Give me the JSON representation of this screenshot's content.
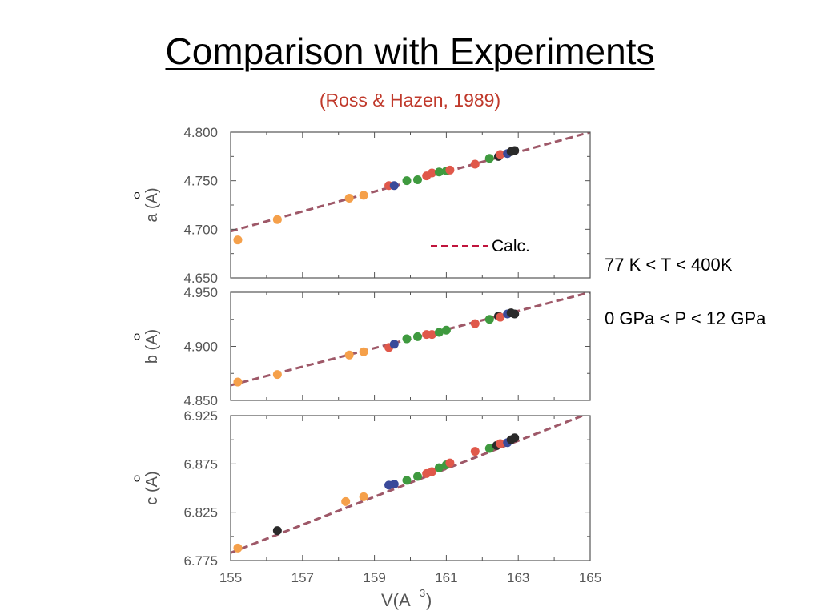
{
  "slide": {
    "title": "Comparison with Experiments",
    "subtitle": "(Ross & Hazen, 1989)",
    "conditions": [
      "77 K < T < 400K",
      "0 GPa < P < 12 GPa"
    ]
  },
  "colors": {
    "subtitle": "#c0392b",
    "calc_line": "#9e5868",
    "legend_line": "#c0143c",
    "orange": "#f5a04a",
    "red": "#e0584a",
    "green": "#3f9a3f",
    "blue": "#3a4a9a",
    "black": "#2a2a2a"
  },
  "legend": {
    "label": "Calc.",
    "style": "dashed"
  },
  "x_axis": {
    "label": "V(A",
    "label_sup": "3",
    "label_close": ")",
    "ticks": [
      "155",
      "157",
      "159",
      "161",
      "163",
      "165"
    ],
    "range": [
      155,
      165
    ]
  },
  "chart_data": [
    {
      "type": "scatter",
      "ylabel": "a (A)",
      "ylabel_accent": "o",
      "ylim": [
        4.65,
        4.8
      ],
      "xlim": [
        155,
        165
      ],
      "yticks": [
        "4.800",
        "4.750",
        "4.700",
        "4.650"
      ],
      "calc_line": {
        "x": [
          155,
          165
        ],
        "y": [
          4.698,
          4.8
        ]
      },
      "points": [
        {
          "x": 155.2,
          "y": 4.689,
          "c": "orange"
        },
        {
          "x": 156.3,
          "y": 4.71,
          "c": "orange"
        },
        {
          "x": 158.3,
          "y": 4.732,
          "c": "orange"
        },
        {
          "x": 158.7,
          "y": 4.735,
          "c": "orange"
        },
        {
          "x": 159.4,
          "y": 4.745,
          "c": "red"
        },
        {
          "x": 159.55,
          "y": 4.745,
          "c": "blue"
        },
        {
          "x": 159.9,
          "y": 4.75,
          "c": "green"
        },
        {
          "x": 160.2,
          "y": 4.751,
          "c": "green"
        },
        {
          "x": 160.45,
          "y": 4.755,
          "c": "red"
        },
        {
          "x": 160.6,
          "y": 4.758,
          "c": "red"
        },
        {
          "x": 160.8,
          "y": 4.759,
          "c": "green"
        },
        {
          "x": 161.0,
          "y": 4.76,
          "c": "green"
        },
        {
          "x": 161.1,
          "y": 4.761,
          "c": "red"
        },
        {
          "x": 161.8,
          "y": 4.767,
          "c": "red"
        },
        {
          "x": 162.2,
          "y": 4.773,
          "c": "green"
        },
        {
          "x": 162.45,
          "y": 4.775,
          "c": "black"
        },
        {
          "x": 162.5,
          "y": 4.777,
          "c": "red"
        },
        {
          "x": 162.7,
          "y": 4.778,
          "c": "blue"
        },
        {
          "x": 162.8,
          "y": 4.78,
          "c": "black"
        },
        {
          "x": 162.9,
          "y": 4.781,
          "c": "black"
        }
      ]
    },
    {
      "type": "scatter",
      "ylabel": "b (A)",
      "ylabel_accent": "o",
      "ylim": [
        4.85,
        4.95
      ],
      "xlim": [
        155,
        165
      ],
      "yticks": [
        "4.950",
        "4.900",
        "4.850"
      ],
      "calc_line": {
        "x": [
          155,
          165
        ],
        "y": [
          4.864,
          4.95
        ]
      },
      "points": [
        {
          "x": 155.2,
          "y": 4.867,
          "c": "orange"
        },
        {
          "x": 156.3,
          "y": 4.874,
          "c": "orange"
        },
        {
          "x": 158.3,
          "y": 4.892,
          "c": "orange"
        },
        {
          "x": 158.7,
          "y": 4.895,
          "c": "orange"
        },
        {
          "x": 159.4,
          "y": 4.899,
          "c": "red"
        },
        {
          "x": 159.55,
          "y": 4.902,
          "c": "blue"
        },
        {
          "x": 159.9,
          "y": 4.907,
          "c": "green"
        },
        {
          "x": 160.2,
          "y": 4.909,
          "c": "green"
        },
        {
          "x": 160.45,
          "y": 4.911,
          "c": "red"
        },
        {
          "x": 160.6,
          "y": 4.911,
          "c": "red"
        },
        {
          "x": 160.8,
          "y": 4.913,
          "c": "green"
        },
        {
          "x": 161.0,
          "y": 4.915,
          "c": "green"
        },
        {
          "x": 161.8,
          "y": 4.921,
          "c": "red"
        },
        {
          "x": 162.2,
          "y": 4.925,
          "c": "green"
        },
        {
          "x": 162.45,
          "y": 4.928,
          "c": "black"
        },
        {
          "x": 162.5,
          "y": 4.927,
          "c": "red"
        },
        {
          "x": 162.7,
          "y": 4.93,
          "c": "blue"
        },
        {
          "x": 162.8,
          "y": 4.931,
          "c": "black"
        },
        {
          "x": 162.9,
          "y": 4.93,
          "c": "black"
        }
      ]
    },
    {
      "type": "scatter",
      "ylabel": "c (A)",
      "ylabel_accent": "o",
      "ylim": [
        6.775,
        6.925
      ],
      "xlim": [
        155,
        165
      ],
      "yticks": [
        "6.925",
        "6.875",
        "6.825",
        "6.775"
      ],
      "calc_line": {
        "x": [
          155,
          165
        ],
        "y": [
          6.783,
          6.928
        ]
      },
      "points": [
        {
          "x": 155.2,
          "y": 6.788,
          "c": "orange"
        },
        {
          "x": 156.3,
          "y": 6.806,
          "c": "black"
        },
        {
          "x": 158.2,
          "y": 6.836,
          "c": "orange"
        },
        {
          "x": 158.7,
          "y": 6.841,
          "c": "orange"
        },
        {
          "x": 159.4,
          "y": 6.853,
          "c": "blue"
        },
        {
          "x": 159.55,
          "y": 6.854,
          "c": "blue"
        },
        {
          "x": 159.9,
          "y": 6.858,
          "c": "green"
        },
        {
          "x": 160.2,
          "y": 6.862,
          "c": "green"
        },
        {
          "x": 160.45,
          "y": 6.865,
          "c": "red"
        },
        {
          "x": 160.6,
          "y": 6.867,
          "c": "red"
        },
        {
          "x": 160.8,
          "y": 6.871,
          "c": "green"
        },
        {
          "x": 161.0,
          "y": 6.874,
          "c": "green"
        },
        {
          "x": 161.1,
          "y": 6.876,
          "c": "red"
        },
        {
          "x": 161.8,
          "y": 6.888,
          "c": "red"
        },
        {
          "x": 162.2,
          "y": 6.891,
          "c": "green"
        },
        {
          "x": 162.4,
          "y": 6.894,
          "c": "black"
        },
        {
          "x": 162.5,
          "y": 6.896,
          "c": "red"
        },
        {
          "x": 162.7,
          "y": 6.897,
          "c": "blue"
        },
        {
          "x": 162.8,
          "y": 6.9,
          "c": "black"
        },
        {
          "x": 162.9,
          "y": 6.902,
          "c": "black"
        }
      ]
    }
  ]
}
